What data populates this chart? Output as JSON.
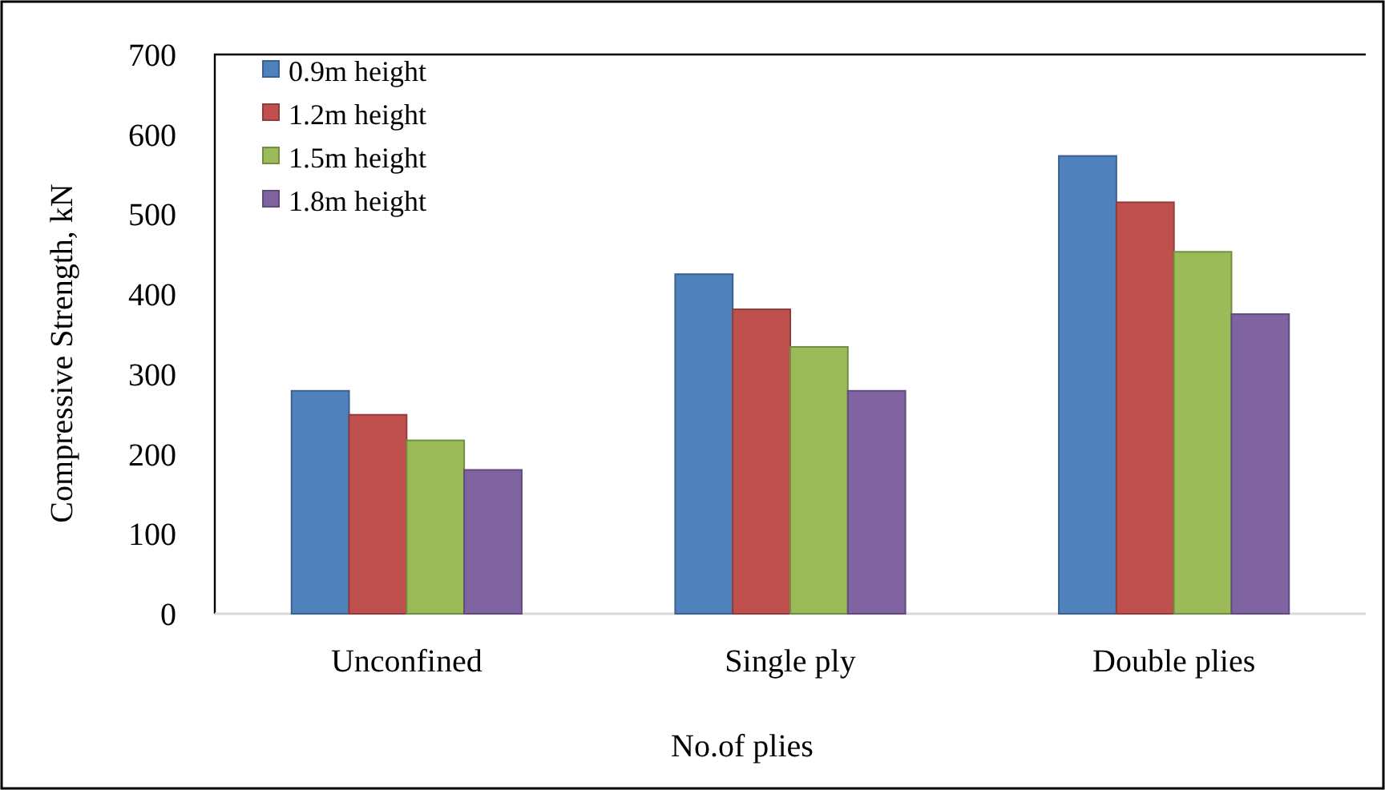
{
  "chart_data": {
    "type": "bar",
    "xlabel": "No.of plies",
    "ylabel": "Compressive Strength, kN",
    "categories": [
      "Unconfined",
      "Single ply",
      "Double plies"
    ],
    "series": [
      {
        "name": "0.9m height",
        "color": "#4f81bd",
        "values": [
          279,
          425,
          573
        ]
      },
      {
        "name": "1.2m height",
        "color": "#c0504d",
        "values": [
          249,
          381,
          515
        ]
      },
      {
        "name": "1.5m height",
        "color": "#9bbb59",
        "values": [
          217,
          334,
          453
        ]
      },
      {
        "name": "1.8m height",
        "color": "#8064a2",
        "values": [
          180,
          279,
          375
        ]
      }
    ],
    "ylim": [
      0,
      700
    ],
    "yticks": [
      0,
      100,
      200,
      300,
      400,
      500,
      600,
      700
    ],
    "grid": false,
    "legend": "top left"
  }
}
